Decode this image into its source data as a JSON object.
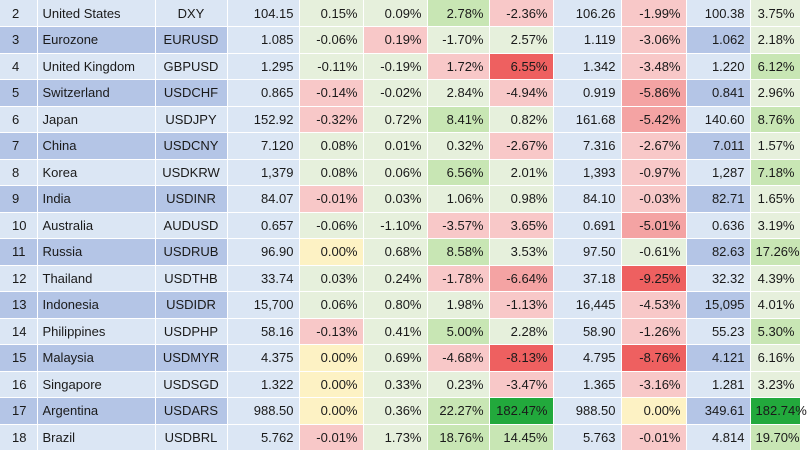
{
  "colors": {
    "base_blue": "#dbe6f4",
    "highlight_blue": "#b4c5e6",
    "neutral_green_light": "#e6f0dc",
    "green_mid": "#c8e6b4",
    "green_strong": "#22a93c",
    "red_light": "#f8c8c8",
    "red_mid": "#f4a3a3",
    "red_strong": "#ee6060",
    "yellow": "#fdf2c4",
    "white_cell": "#ffffff"
  },
  "rows": [
    {
      "idx": "2",
      "country": "United States",
      "ticker": "DXY",
      "c1": "104.15",
      "c2": "0.15%",
      "c3": "0.09%",
      "c4": "2.78%",
      "c5": "-2.36%",
      "c6": "106.26",
      "c7": "-1.99%",
      "c8": "100.38",
      "c9": "3.75%",
      "hl": false,
      "bg": [
        "base",
        "base",
        "base",
        "base",
        "ng",
        "ng",
        "gm",
        "rl",
        "base",
        "rl",
        "base",
        "ng"
      ]
    },
    {
      "idx": "3",
      "country": "Eurozone",
      "ticker": "EURUSD",
      "c1": "1.085",
      "c2": "-0.06%",
      "c3": "0.19%",
      "c4": "-1.70%",
      "c5": "2.57%",
      "c6": "1.119",
      "c7": "-3.06%",
      "c8": "1.062",
      "c9": "2.18%",
      "hl": true,
      "bg": [
        "hl",
        "hl",
        "hl",
        "base",
        "ng",
        "rl",
        "ng",
        "ng",
        "base",
        "rl",
        "hl",
        "ng"
      ]
    },
    {
      "idx": "4",
      "country": "United Kingdom",
      "ticker": "GBPUSD",
      "c1": "1.295",
      "c2": "-0.11%",
      "c3": "-0.19%",
      "c4": "1.72%",
      "c5": "6.55%",
      "c6": "1.342",
      "c7": "-3.48%",
      "c8": "1.220",
      "c9": "6.12%",
      "hl": false,
      "bg": [
        "base",
        "base",
        "base",
        "base",
        "ng",
        "ng",
        "rl",
        "rs",
        "base",
        "rl",
        "base",
        "gm"
      ]
    },
    {
      "idx": "5",
      "country": "Switzerland",
      "ticker": "USDCHF",
      "c1": "0.865",
      "c2": "-0.14%",
      "c3": "-0.02%",
      "c4": "2.84%",
      "c5": "-4.94%",
      "c6": "0.919",
      "c7": "-5.86%",
      "c8": "0.841",
      "c9": "2.96%",
      "hl": true,
      "bg": [
        "hl",
        "hl",
        "hl",
        "base",
        "rl",
        "ng",
        "ng",
        "rl",
        "base",
        "rm",
        "hl",
        "ng"
      ]
    },
    {
      "idx": "6",
      "country": "Japan",
      "ticker": "USDJPY",
      "c1": "152.92",
      "c2": "-0.32%",
      "c3": "0.72%",
      "c4": "8.41%",
      "c5": "0.82%",
      "c6": "161.68",
      "c7": "-5.42%",
      "c8": "140.60",
      "c9": "8.76%",
      "hl": false,
      "bg": [
        "base",
        "base",
        "base",
        "base",
        "rl",
        "ng",
        "gm",
        "ng",
        "base",
        "rm",
        "base",
        "gm"
      ]
    },
    {
      "idx": "7",
      "country": "China",
      "ticker": "USDCNY",
      "c1": "7.120",
      "c2": "0.08%",
      "c3": "0.01%",
      "c4": "0.32%",
      "c5": "-2.67%",
      "c6": "7.316",
      "c7": "-2.67%",
      "c8": "7.011",
      "c9": "1.57%",
      "hl": true,
      "bg": [
        "hl",
        "hl",
        "hl",
        "base",
        "ng",
        "ng",
        "ng",
        "rl",
        "base",
        "rl",
        "hl",
        "ng"
      ]
    },
    {
      "idx": "8",
      "country": "Korea",
      "ticker": "USDKRW",
      "c1": "1,379",
      "c2": "0.08%",
      "c3": "0.06%",
      "c4": "6.56%",
      "c5": "2.01%",
      "c6": "1,393",
      "c7": "-0.97%",
      "c8": "1,287",
      "c9": "7.18%",
      "hl": false,
      "bg": [
        "base",
        "base",
        "base",
        "base",
        "ng",
        "ng",
        "gm",
        "ng",
        "base",
        "rl",
        "base",
        "gm"
      ]
    },
    {
      "idx": "9",
      "country": "India",
      "ticker": "USDINR",
      "c1": "84.07",
      "c2": "-0.01%",
      "c3": "0.03%",
      "c4": "1.06%",
      "c5": "0.98%",
      "c6": "84.10",
      "c7": "-0.03%",
      "c8": "82.71",
      "c9": "1.65%",
      "hl": true,
      "bg": [
        "hl",
        "hl",
        "hl",
        "base",
        "rl",
        "ng",
        "ng",
        "ng",
        "base",
        "rl",
        "hl",
        "ng"
      ]
    },
    {
      "idx": "10",
      "country": "Australia",
      "ticker": "AUDUSD",
      "c1": "0.657",
      "c2": "-0.06%",
      "c3": "-1.10%",
      "c4": "-3.57%",
      "c5": "3.65%",
      "c6": "0.691",
      "c7": "-5.01%",
      "c8": "0.636",
      "c9": "3.19%",
      "hl": false,
      "bg": [
        "base",
        "base",
        "base",
        "base",
        "ng",
        "ng",
        "rl",
        "rl",
        "base",
        "rm",
        "base",
        "ng"
      ]
    },
    {
      "idx": "11",
      "country": "Russia",
      "ticker": "USDRUB",
      "c1": "96.90",
      "c2": "0.00%",
      "c3": "0.68%",
      "c4": "8.58%",
      "c5": "3.53%",
      "c6": "97.50",
      "c7": "-0.61%",
      "c8": "82.63",
      "c9": "17.26%",
      "hl": true,
      "bg": [
        "hl",
        "hl",
        "hl",
        "base",
        "ye",
        "ng",
        "gm",
        "ng",
        "base",
        "ng",
        "hl",
        "gm"
      ]
    },
    {
      "idx": "12",
      "country": "Thailand",
      "ticker": "USDTHB",
      "c1": "33.74",
      "c2": "0.03%",
      "c3": "0.24%",
      "c4": "-1.78%",
      "c5": "-6.64%",
      "c6": "37.18",
      "c7": "-9.25%",
      "c8": "32.32",
      "c9": "4.39%",
      "hl": false,
      "bg": [
        "base",
        "base",
        "base",
        "base",
        "ng",
        "ng",
        "rl",
        "rm",
        "base",
        "rs",
        "base",
        "ng"
      ]
    },
    {
      "idx": "13",
      "country": "Indonesia",
      "ticker": "USDIDR",
      "c1": "15,700",
      "c2": "0.06%",
      "c3": "0.80%",
      "c4": "1.98%",
      "c5": "-1.13%",
      "c6": "16,445",
      "c7": "-4.53%",
      "c8": "15,095",
      "c9": "4.01%",
      "hl": true,
      "bg": [
        "hl",
        "hl",
        "hl",
        "base",
        "ng",
        "ng",
        "ng",
        "rl",
        "base",
        "rl",
        "hl",
        "ng"
      ]
    },
    {
      "idx": "14",
      "country": "Philippines",
      "ticker": "USDPHP",
      "c1": "58.16",
      "c2": "-0.13%",
      "c3": "0.41%",
      "c4": "5.00%",
      "c5": "2.28%",
      "c6": "58.90",
      "c7": "-1.26%",
      "c8": "55.23",
      "c9": "5.30%",
      "hl": false,
      "bg": [
        "base",
        "base",
        "base",
        "base",
        "rl",
        "ng",
        "gm",
        "ng",
        "base",
        "rl",
        "base",
        "gm"
      ]
    },
    {
      "idx": "15",
      "country": "Malaysia",
      "ticker": "USDMYR",
      "c1": "4.375",
      "c2": "0.00%",
      "c3": "0.69%",
      "c4": "-4.68%",
      "c5": "-8.13%",
      "c6": "4.795",
      "c7": "-8.76%",
      "c8": "4.121",
      "c9": "6.16%",
      "hl": true,
      "bg": [
        "hl",
        "hl",
        "hl",
        "base",
        "ye",
        "ng",
        "rl",
        "rs",
        "base",
        "rs",
        "hl",
        "ng"
      ]
    },
    {
      "idx": "16",
      "country": "Singapore",
      "ticker": "USDSGD",
      "c1": "1.322",
      "c2": "0.00%",
      "c3": "0.33%",
      "c4": "0.23%",
      "c5": "-3.47%",
      "c6": "1.365",
      "c7": "-3.16%",
      "c8": "1.281",
      "c9": "3.23%",
      "hl": false,
      "bg": [
        "base",
        "base",
        "base",
        "base",
        "ye",
        "ng",
        "ng",
        "rl",
        "base",
        "rl",
        "base",
        "ng"
      ]
    },
    {
      "idx": "17",
      "country": "Argentina",
      "ticker": "USDARS",
      "c1": "988.50",
      "c2": "0.00%",
      "c3": "0.36%",
      "c4": "22.27%",
      "c5": "182.47%",
      "c6": "988.50",
      "c7": "0.00%",
      "c8": "349.61",
      "c9": "182.74%",
      "hl": true,
      "bg": [
        "hl",
        "hl",
        "hl",
        "base",
        "ye",
        "ng",
        "gm",
        "gs",
        "base",
        "ye",
        "hl",
        "gs"
      ]
    },
    {
      "idx": "18",
      "country": "Brazil",
      "ticker": "USDBRL",
      "c1": "5.762",
      "c2": "-0.01%",
      "c3": "1.73%",
      "c4": "18.76%",
      "c5": "14.45%",
      "c6": "5.763",
      "c7": "-0.01%",
      "c8": "4.814",
      "c9": "19.70%",
      "hl": false,
      "bg": [
        "base",
        "base",
        "base",
        "base",
        "rl",
        "ng",
        "gm",
        "gm",
        "base",
        "rl",
        "base",
        "gm"
      ]
    }
  ]
}
